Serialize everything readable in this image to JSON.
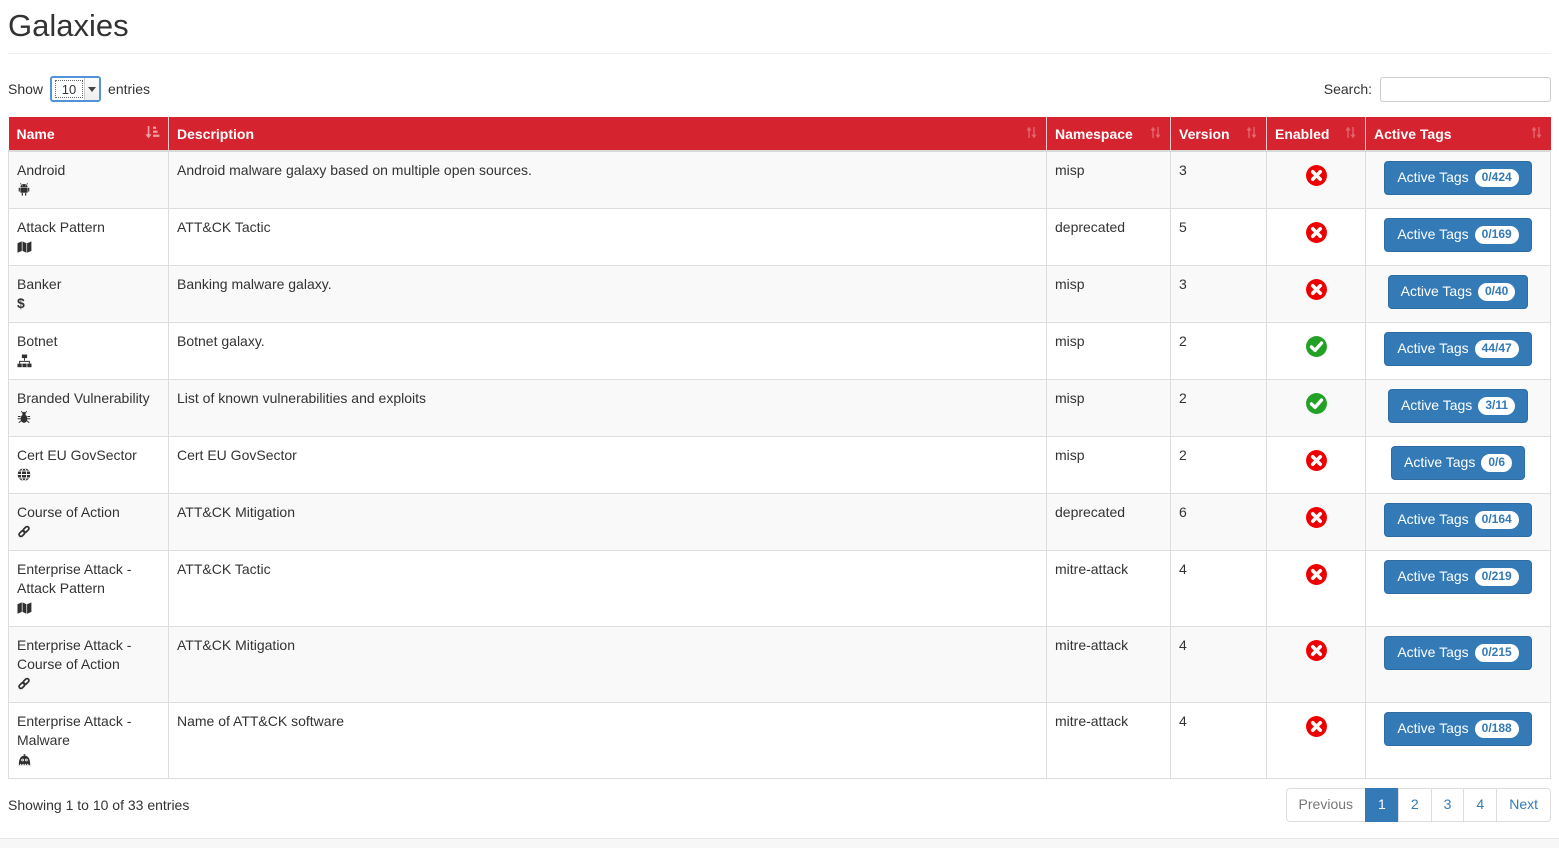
{
  "page": {
    "title": "Galaxies"
  },
  "toolbar": {
    "show_label": "Show",
    "page_length": "10",
    "entries_label": "entries",
    "search_label": "Search:",
    "search_value": ""
  },
  "table": {
    "columns": {
      "name": "Name",
      "description": "Description",
      "namespace": "Namespace",
      "version": "Version",
      "enabled": "Enabled",
      "active_tags": "Active Tags"
    },
    "rows": [
      {
        "name": "Android",
        "icon": "android-icon",
        "description": "Android malware galaxy based on multiple open sources.",
        "namespace": "misp",
        "version": "3",
        "enabled": false,
        "active_tags_label": "Active Tags",
        "active_tags_count": "0/424"
      },
      {
        "name": "Attack Pattern",
        "icon": "map-icon",
        "description": "ATT&CK Tactic",
        "namespace": "deprecated",
        "version": "5",
        "enabled": false,
        "active_tags_label": "Active Tags",
        "active_tags_count": "0/169"
      },
      {
        "name": "Banker",
        "icon": "dollar-icon",
        "description": "Banking malware galaxy.",
        "namespace": "misp",
        "version": "3",
        "enabled": false,
        "active_tags_label": "Active Tags",
        "active_tags_count": "0/40"
      },
      {
        "name": "Botnet",
        "icon": "sitemap-icon",
        "description": "Botnet galaxy.",
        "namespace": "misp",
        "version": "2",
        "enabled": true,
        "active_tags_label": "Active Tags",
        "active_tags_count": "44/47"
      },
      {
        "name": "Branded Vulnerability",
        "icon": "bug-icon",
        "description": "List of known vulnerabilities and exploits",
        "namespace": "misp",
        "version": "2",
        "enabled": true,
        "active_tags_label": "Active Tags",
        "active_tags_count": "3/11"
      },
      {
        "name": "Cert EU GovSector",
        "icon": "globe-icon",
        "description": "Cert EU GovSector",
        "namespace": "misp",
        "version": "2",
        "enabled": false,
        "active_tags_label": "Active Tags",
        "active_tags_count": "0/6"
      },
      {
        "name": "Course of Action",
        "icon": "link-icon",
        "description": "ATT&CK Mitigation",
        "namespace": "deprecated",
        "version": "6",
        "enabled": false,
        "active_tags_label": "Active Tags",
        "active_tags_count": "0/164"
      },
      {
        "name": "Enterprise Attack - Attack Pattern",
        "icon": "map-icon",
        "description": "ATT&CK Tactic",
        "namespace": "mitre-attack",
        "version": "4",
        "enabled": false,
        "active_tags_label": "Active Tags",
        "active_tags_count": "0/219"
      },
      {
        "name": "Enterprise Attack - Course of Action",
        "icon": "link-icon",
        "description": "ATT&CK Mitigation",
        "namespace": "mitre-attack",
        "version": "4",
        "enabled": false,
        "active_tags_label": "Active Tags",
        "active_tags_count": "0/215"
      },
      {
        "name": "Enterprise Attack - Malware",
        "icon": "monster-icon",
        "description": "Name of ATT&CK software",
        "namespace": "mitre-attack",
        "version": "4",
        "enabled": false,
        "active_tags_label": "Active Tags",
        "active_tags_count": "0/188"
      }
    ]
  },
  "footer": {
    "showing_text": "Showing 1 to 10 of 33 entries",
    "pagination": {
      "previous": "Previous",
      "pages": [
        "1",
        "2",
        "3",
        "4"
      ],
      "active_page": "1",
      "next": "Next"
    }
  },
  "colors": {
    "header_red": "#d5232f",
    "button_blue": "#337ab7",
    "button_border_blue": "#2e6da4",
    "enabled_green": "#23a127",
    "disabled_red": "#ee0000",
    "pagination_active_blue": "#337ab7"
  }
}
